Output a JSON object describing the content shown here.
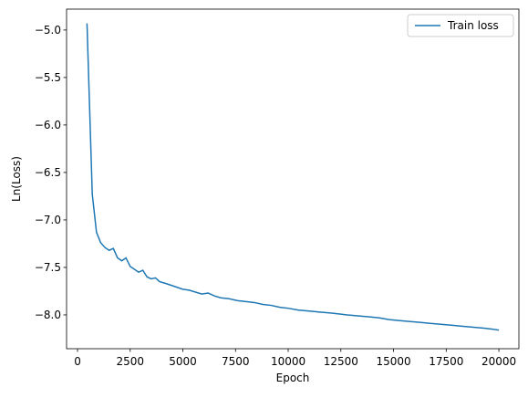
{
  "chart_data": {
    "type": "line",
    "xlabel": "Epoch",
    "ylabel": "Ln(Loss)",
    "x": [
      450,
      700,
      900,
      1100,
      1300,
      1500,
      1700,
      1900,
      2100,
      2300,
      2500,
      2700,
      2900,
      3100,
      3300,
      3500,
      3700,
      3900,
      4200,
      4600,
      5000,
      5300,
      5600,
      5900,
      6200,
      6500,
      6800,
      7200,
      7600,
      8000,
      8400,
      8800,
      9200,
      9600,
      10000,
      10500,
      11000,
      11500,
      12000,
      12400,
      12800,
      13300,
      13800,
      14300,
      14800,
      15300,
      15800,
      16300,
      16800,
      17300,
      17800,
      18300,
      18800,
      19300,
      19700,
      20000
    ],
    "series": [
      {
        "name": "Train loss",
        "color": "#1f77b4",
        "values": [
          -4.93,
          -6.73,
          -7.13,
          -7.24,
          -7.29,
          -7.32,
          -7.3,
          -7.4,
          -7.43,
          -7.4,
          -7.49,
          -7.52,
          -7.55,
          -7.53,
          -7.6,
          -7.62,
          -7.61,
          -7.65,
          -7.67,
          -7.7,
          -7.73,
          -7.74,
          -7.76,
          -7.78,
          -7.77,
          -7.8,
          -7.82,
          -7.83,
          -7.85,
          -7.86,
          -7.87,
          -7.89,
          -7.9,
          -7.92,
          -7.93,
          -7.95,
          -7.96,
          -7.97,
          -7.98,
          -7.99,
          -8.0,
          -8.01,
          -8.02,
          -8.03,
          -8.05,
          -8.06,
          -8.07,
          -8.08,
          -8.09,
          -8.1,
          -8.11,
          -8.12,
          -8.13,
          -8.14,
          -8.15,
          -8.16
        ]
      }
    ],
    "xlim": [
      -520,
      20950
    ],
    "xticks": [
      0,
      2500,
      5000,
      7500,
      10000,
      12500,
      15000,
      17500,
      20000
    ],
    "ylim": [
      -8.356,
      -4.78
    ],
    "yticks": [
      {
        "value": -8.0,
        "label": "−8.0"
      },
      {
        "value": -7.5,
        "label": "−7.5"
      },
      {
        "value": -7.0,
        "label": "−7.0"
      },
      {
        "value": -6.5,
        "label": "−6.5"
      },
      {
        "value": -6.0,
        "label": "−6.0"
      },
      {
        "value": -5.5,
        "label": "−5.5"
      },
      {
        "value": -5.0,
        "label": "−5.0"
      }
    ],
    "legend": "upper right",
    "grid": false
  }
}
